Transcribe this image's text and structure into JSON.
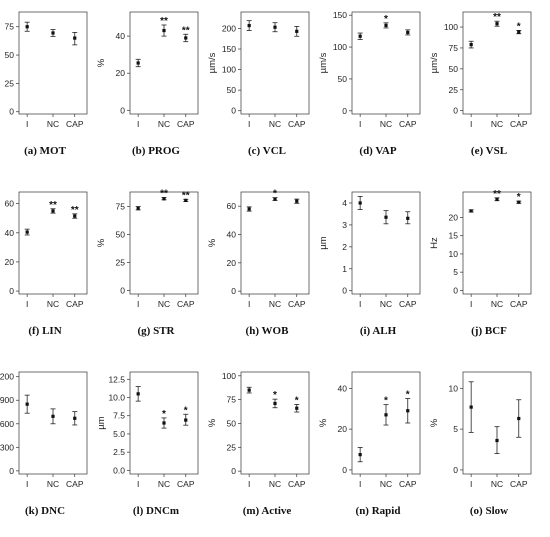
{
  "chart_data": [
    {
      "type": "scatter",
      "caption": "(a) MOT",
      "ylabel": "%",
      "ylim": [
        -2,
        88
      ],
      "yticks": [
        0,
        25,
        50,
        75
      ],
      "categories": [
        "I",
        "NC",
        "CAP"
      ],
      "values": [
        75,
        69.5,
        65
      ],
      "err_low": [
        71,
        66.5,
        59
      ],
      "err_high": [
        79,
        72.5,
        70
      ],
      "sig": [
        "",
        "",
        ""
      ]
    },
    {
      "type": "scatter",
      "caption": "(b) PROG",
      "ylabel": "%",
      "ylim": [
        -2,
        53
      ],
      "yticks": [
        0,
        20,
        40
      ],
      "categories": [
        "I",
        "NC",
        "CAP"
      ],
      "values": [
        25.5,
        43,
        39
      ],
      "err_low": [
        23.5,
        40,
        37
      ],
      "err_high": [
        27.5,
        46,
        41
      ],
      "sig": [
        "",
        "**",
        "**"
      ]
    },
    {
      "type": "scatter",
      "caption": "(c) VCL",
      "ylabel": "µm/s",
      "ylim": [
        -8,
        240
      ],
      "yticks": [
        0,
        50,
        100,
        150,
        200
      ],
      "categories": [
        "I",
        "NC",
        "CAP"
      ],
      "values": [
        207,
        203,
        193
      ],
      "err_low": [
        195,
        192,
        181
      ],
      "err_high": [
        219,
        214,
        205
      ],
      "sig": [
        "",
        "",
        ""
      ]
    },
    {
      "type": "scatter",
      "caption": "(d) VAP",
      "ylabel": "µm/s",
      "ylim": [
        -5,
        155
      ],
      "yticks": [
        0,
        50,
        100,
        150
      ],
      "categories": [
        "I",
        "NC",
        "CAP"
      ],
      "values": [
        117,
        134,
        123
      ],
      "err_low": [
        112,
        130,
        119
      ],
      "err_high": [
        122,
        138,
        127
      ],
      "sig": [
        "",
        "*",
        ""
      ]
    },
    {
      "type": "scatter",
      "caption": "(e) VSL",
      "ylabel": "µm/s",
      "ylim": [
        -4,
        118
      ],
      "yticks": [
        0,
        25,
        50,
        75,
        100
      ],
      "categories": [
        "I",
        "NC",
        "CAP"
      ],
      "values": [
        79,
        104,
        94
      ],
      "err_low": [
        75,
        101,
        92
      ],
      "err_high": [
        83,
        107,
        96
      ],
      "sig": [
        "",
        "**",
        "*"
      ]
    },
    {
      "type": "scatter",
      "caption": "(f) LIN",
      "ylabel": "%",
      "ylim": [
        -2,
        68
      ],
      "yticks": [
        0,
        20,
        40,
        60
      ],
      "categories": [
        "I",
        "NC",
        "CAP"
      ],
      "values": [
        40.5,
        55,
        51.5
      ],
      "err_low": [
        38.5,
        53.5,
        50
      ],
      "err_high": [
        42.5,
        56.5,
        53
      ],
      "sig": [
        "",
        "**",
        "**"
      ]
    },
    {
      "type": "scatter",
      "caption": "(g) STR",
      "ylabel": "%",
      "ylim": [
        -3,
        88
      ],
      "yticks": [
        0,
        25,
        50,
        75
      ],
      "categories": [
        "I",
        "NC",
        "CAP"
      ],
      "values": [
        73.5,
        82,
        80.5
      ],
      "err_low": [
        72,
        81,
        79.5
      ],
      "err_high": [
        75,
        83,
        81.5
      ],
      "sig": [
        "",
        "**",
        "**"
      ]
    },
    {
      "type": "scatter",
      "caption": "(h) WOB",
      "ylabel": "%",
      "ylim": [
        -2,
        70
      ],
      "yticks": [
        0,
        20,
        40,
        60
      ],
      "categories": [
        "I",
        "NC",
        "CAP"
      ],
      "values": [
        58,
        65,
        63.5
      ],
      "err_low": [
        56.5,
        64,
        62
      ],
      "err_high": [
        59.5,
        66,
        65
      ],
      "sig": [
        "",
        "*",
        ""
      ]
    },
    {
      "type": "scatter",
      "caption": "(i) ALH",
      "ylabel": "µm",
      "ylim": [
        -0.15,
        4.5
      ],
      "yticks": [
        0,
        1,
        2,
        3,
        4
      ],
      "categories": [
        "I",
        "NC",
        "CAP"
      ],
      "values": [
        4.0,
        3.35,
        3.3
      ],
      "err_low": [
        3.7,
        3.05,
        3.05
      ],
      "err_high": [
        4.3,
        3.65,
        3.6
      ],
      "sig": [
        "",
        "",
        ""
      ]
    },
    {
      "type": "scatter",
      "caption": "(j) BCF",
      "ylabel": "Hz",
      "ylim": [
        -1,
        27
      ],
      "yticks": [
        0,
        5,
        10,
        15,
        20
      ],
      "categories": [
        "I",
        "NC",
        "CAP"
      ],
      "values": [
        21.8,
        25,
        24.2
      ],
      "err_low": [
        21.5,
        24.6,
        23.9
      ],
      "err_high": [
        22.1,
        25.4,
        24.5
      ],
      "sig": [
        "",
        "**",
        "*"
      ]
    },
    {
      "type": "scatter",
      "caption": "(k) DNC",
      "ylabel": "µm",
      "ylim": [
        -40,
        1260
      ],
      "yticks": [
        0,
        300,
        600,
        900,
        1200
      ],
      "categories": [
        "I",
        "NC",
        "CAP"
      ],
      "values": [
        850,
        695,
        670
      ],
      "err_low": [
        735,
        600,
        585
      ],
      "err_high": [
        965,
        790,
        755
      ],
      "sig": [
        "",
        "",
        ""
      ]
    },
    {
      "type": "scatter",
      "caption": "(l) DNCm",
      "ylabel": "µm",
      "ylim": [
        -0.5,
        13.5
      ],
      "yticks": [
        0.0,
        2.5,
        5.0,
        7.5,
        10.0,
        12.5
      ],
      "categories": [
        "I",
        "NC",
        "CAP"
      ],
      "values": [
        10.5,
        6.5,
        6.9
      ],
      "err_low": [
        9.5,
        5.8,
        6.2
      ],
      "err_high": [
        11.5,
        7.2,
        7.7
      ],
      "sig": [
        "",
        "*",
        "*"
      ]
    },
    {
      "type": "scatter",
      "caption": "(m) Active",
      "ylabel": "%",
      "ylim": [
        -3,
        104
      ],
      "yticks": [
        0,
        25,
        50,
        75,
        100
      ],
      "categories": [
        "I",
        "NC",
        "CAP"
      ],
      "values": [
        85,
        71,
        66
      ],
      "err_low": [
        82,
        66.5,
        62
      ],
      "err_high": [
        88,
        75.5,
        70
      ],
      "sig": [
        "",
        "*",
        "*"
      ]
    },
    {
      "type": "scatter",
      "caption": "(n) Rapid",
      "ylabel": "%",
      "ylim": [
        -2,
        48
      ],
      "yticks": [
        0,
        20,
        40
      ],
      "categories": [
        "I",
        "NC",
        "CAP"
      ],
      "values": [
        7.5,
        27,
        29
      ],
      "err_low": [
        4,
        22,
        23
      ],
      "err_high": [
        11,
        32,
        35
      ],
      "sig": [
        "",
        "*",
        "*"
      ]
    },
    {
      "type": "scatter",
      "caption": "(o) Slow",
      "ylabel": "%",
      "ylim": [
        -0.5,
        12
      ],
      "yticks": [
        0,
        5,
        10
      ],
      "categories": [
        "I",
        "NC",
        "CAP"
      ],
      "values": [
        7.7,
        3.6,
        6.3
      ],
      "err_low": [
        4.6,
        2.0,
        4.0
      ],
      "err_high": [
        10.8,
        5.3,
        8.6
      ],
      "sig": [
        "",
        "",
        ""
      ]
    }
  ]
}
